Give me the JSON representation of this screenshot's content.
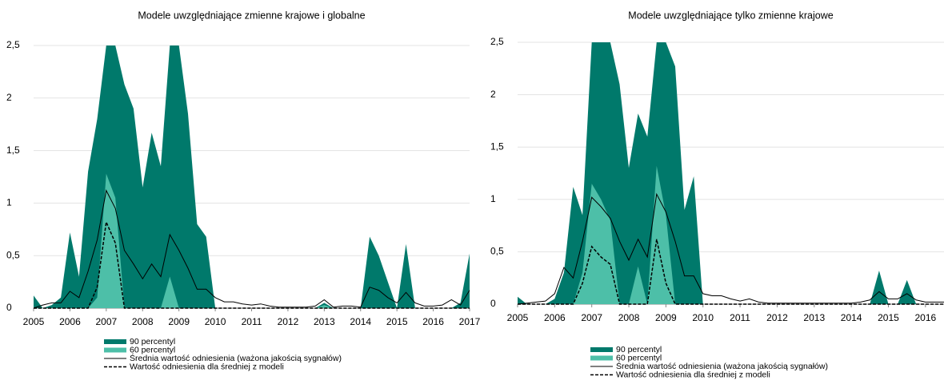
{
  "chart_data": [
    {
      "type": "area",
      "title": "Modele uwzględniające zmienne krajowe i globalne",
      "x": [
        2005,
        2005.25,
        2005.5,
        2005.75,
        2006,
        2006.25,
        2006.5,
        2006.75,
        2007,
        2007.25,
        2007.5,
        2007.75,
        2008,
        2008.25,
        2008.5,
        2008.75,
        2009,
        2009.25,
        2009.5,
        2009.75,
        2010,
        2010.25,
        2010.5,
        2010.75,
        2011,
        2011.25,
        2011.5,
        2011.75,
        2012,
        2012.25,
        2012.5,
        2012.75,
        2013,
        2013.25,
        2013.5,
        2013.75,
        2014,
        2014.25,
        2014.5,
        2014.75,
        2015,
        2015.25,
        2015.5,
        2015.75,
        2016,
        2016.25,
        2016.5,
        2016.75,
        2017
      ],
      "xlim": [
        2005,
        2017
      ],
      "xticks": [
        2005,
        2006,
        2007,
        2008,
        2009,
        2010,
        2011,
        2012,
        2013,
        2014,
        2015,
        2016,
        2017
      ],
      "ylim": [
        0,
        2.5
      ],
      "yticks": [
        0,
        {
          "value": 0.5,
          "label": "0,5"
        },
        1,
        {
          "value": 1.5,
          "label": "1,5"
        },
        2,
        {
          "value": 2.5,
          "label": "2,5"
        }
      ],
      "grid": true,
      "series": [
        {
          "name": "90 percentyl",
          "kind": "area",
          "color": "#00796b",
          "values": [
            0.12,
            0,
            0.03,
            0.1,
            0.72,
            0.3,
            1.3,
            1.8,
            2.5,
            2.5,
            2.13,
            1.9,
            1.15,
            1.67,
            1.35,
            2.5,
            2.5,
            1.85,
            0.8,
            0.68,
            0,
            0,
            0,
            0,
            0,
            0,
            0,
            0,
            0,
            0,
            0,
            0,
            0.05,
            0,
            0,
            0,
            0,
            0.68,
            0.5,
            0.25,
            0,
            0.61,
            0,
            0,
            0,
            0,
            0,
            0.05,
            0.52
          ]
        },
        {
          "name": "60 percentyl",
          "kind": "area",
          "color": "#4dbfa8",
          "values": [
            0,
            0,
            0,
            0,
            0,
            0,
            0,
            0.1,
            1.28,
            1.05,
            0,
            0,
            0,
            0,
            0,
            0.3,
            0,
            0,
            0,
            0,
            0,
            0,
            0,
            0,
            0,
            0,
            0,
            0,
            0,
            0,
            0,
            0,
            0.03,
            0,
            0,
            0,
            0,
            0,
            0,
            0,
            0,
            0,
            0,
            0,
            0,
            0,
            0,
            0,
            0
          ]
        },
        {
          "name": "Średnia wartość odniesienia (ważona jakością sygnałów)",
          "kind": "line",
          "color": "#000000",
          "values": [
            0,
            0.03,
            0.05,
            0.05,
            0.16,
            0.1,
            0.35,
            0.65,
            1.12,
            0.95,
            0.55,
            0.42,
            0.28,
            0.42,
            0.3,
            0.7,
            0.55,
            0.38,
            0.18,
            0.18,
            0.1,
            0.06,
            0.06,
            0.04,
            0.03,
            0.04,
            0.02,
            0.01,
            0.01,
            0.01,
            0.01,
            0.02,
            0.08,
            0.01,
            0.02,
            0.02,
            0.01,
            0.2,
            0.17,
            0.1,
            0.05,
            0.15,
            0.05,
            0.02,
            0.02,
            0.03,
            0.08,
            0.03,
            0.17
          ]
        },
        {
          "name": "Wartość odniesienia dla średniej z modeli",
          "kind": "dashed",
          "color": "#000000",
          "values": [
            0,
            0,
            0,
            0,
            0,
            0,
            0,
            0.2,
            0.82,
            0.62,
            0,
            0,
            0,
            0,
            0,
            0,
            0,
            0,
            0,
            0,
            0,
            0,
            0,
            0,
            0,
            0,
            0,
            0,
            0,
            0,
            0,
            0,
            0,
            0,
            0,
            0,
            0,
            0,
            0,
            0,
            0,
            0,
            0,
            0,
            0,
            0,
            0,
            0,
            0
          ]
        }
      ]
    },
    {
      "type": "area",
      "title": "Modele uwzględniające tylko zmienne krajowe",
      "x": [
        2005,
        2005.25,
        2005.5,
        2005.75,
        2006,
        2006.25,
        2006.5,
        2006.75,
        2007,
        2007.25,
        2007.5,
        2007.75,
        2008,
        2008.25,
        2008.5,
        2008.75,
        2009,
        2009.25,
        2009.5,
        2009.75,
        2010,
        2010.25,
        2010.5,
        2010.75,
        2011,
        2011.25,
        2011.5,
        2011.75,
        2012,
        2012.25,
        2012.5,
        2012.75,
        2013,
        2013.25,
        2013.5,
        2013.75,
        2014,
        2014.25,
        2014.5,
        2014.75,
        2015,
        2015.25,
        2015.5,
        2015.75,
        2016,
        2016.25,
        2016.5
      ],
      "xlim": [
        2005,
        2016.5
      ],
      "xticks": [
        2005,
        2006,
        2007,
        2008,
        2009,
        2010,
        2011,
        2012,
        2013,
        2014,
        2015,
        2016
      ],
      "ylim": [
        0,
        2.5
      ],
      "yticks": [
        0,
        {
          "value": 0.5,
          "label": "0,5"
        },
        1,
        {
          "value": 1.5,
          "label": "1,5"
        },
        2,
        {
          "value": 2.5,
          "label": "2,5"
        }
      ],
      "grid": true,
      "series": [
        {
          "name": "90 percentyl",
          "kind": "area",
          "color": "#00796b",
          "values": [
            0.07,
            0,
            0,
            0,
            0.05,
            0.3,
            1.12,
            0.85,
            2.5,
            2.5,
            2.5,
            2.1,
            1.3,
            1.82,
            1.6,
            2.5,
            2.5,
            2.27,
            0.9,
            1.22,
            0,
            0,
            0,
            0,
            0,
            0,
            0,
            0,
            0,
            0,
            0,
            0,
            0,
            0,
            0,
            0,
            0,
            0,
            0,
            0.32,
            0,
            0,
            0.23,
            0,
            0,
            0,
            0
          ]
        },
        {
          "name": "60 percentyl",
          "kind": "area",
          "color": "#4dbfa8",
          "values": [
            0,
            0,
            0,
            0,
            0,
            0,
            0,
            0.3,
            1.15,
            1.0,
            0.8,
            0,
            0,
            0.36,
            0,
            1.32,
            0.85,
            0,
            0,
            0,
            0,
            0,
            0,
            0,
            0,
            0,
            0,
            0,
            0,
            0,
            0,
            0,
            0,
            0,
            0,
            0,
            0,
            0,
            0,
            0,
            0,
            0,
            0,
            0,
            0,
            0,
            0
          ]
        },
        {
          "name": "Średnia wartość odniesienia (ważona jakością sygnałów)",
          "kind": "line",
          "color": "#000000",
          "values": [
            0,
            0.01,
            0.02,
            0.03,
            0.1,
            0.35,
            0.25,
            0.6,
            1.02,
            0.93,
            0.82,
            0.6,
            0.42,
            0.62,
            0.45,
            1.05,
            0.88,
            0.6,
            0.27,
            0.27,
            0.1,
            0.08,
            0.08,
            0.05,
            0.03,
            0.05,
            0.02,
            0.01,
            0.01,
            0.01,
            0.01,
            0.01,
            0.01,
            0.01,
            0.01,
            0.01,
            0.01,
            0.02,
            0.04,
            0.12,
            0.05,
            0.05,
            0.1,
            0.04,
            0.02,
            0.02,
            0.02
          ]
        },
        {
          "name": "Wartość odniesienia dla średniej z modeli",
          "kind": "dashed",
          "color": "#000000",
          "values": [
            0,
            0,
            0,
            0,
            0,
            0,
            0,
            0.2,
            0.55,
            0.45,
            0.38,
            0,
            0,
            0,
            0,
            0.62,
            0.2,
            0,
            0,
            0,
            0,
            0,
            0,
            0,
            0,
            0,
            0,
            0,
            0,
            0,
            0,
            0,
            0,
            0,
            0,
            0,
            0,
            0,
            0,
            0,
            0,
            0,
            0,
            0,
            0,
            0,
            0
          ]
        }
      ]
    }
  ]
}
